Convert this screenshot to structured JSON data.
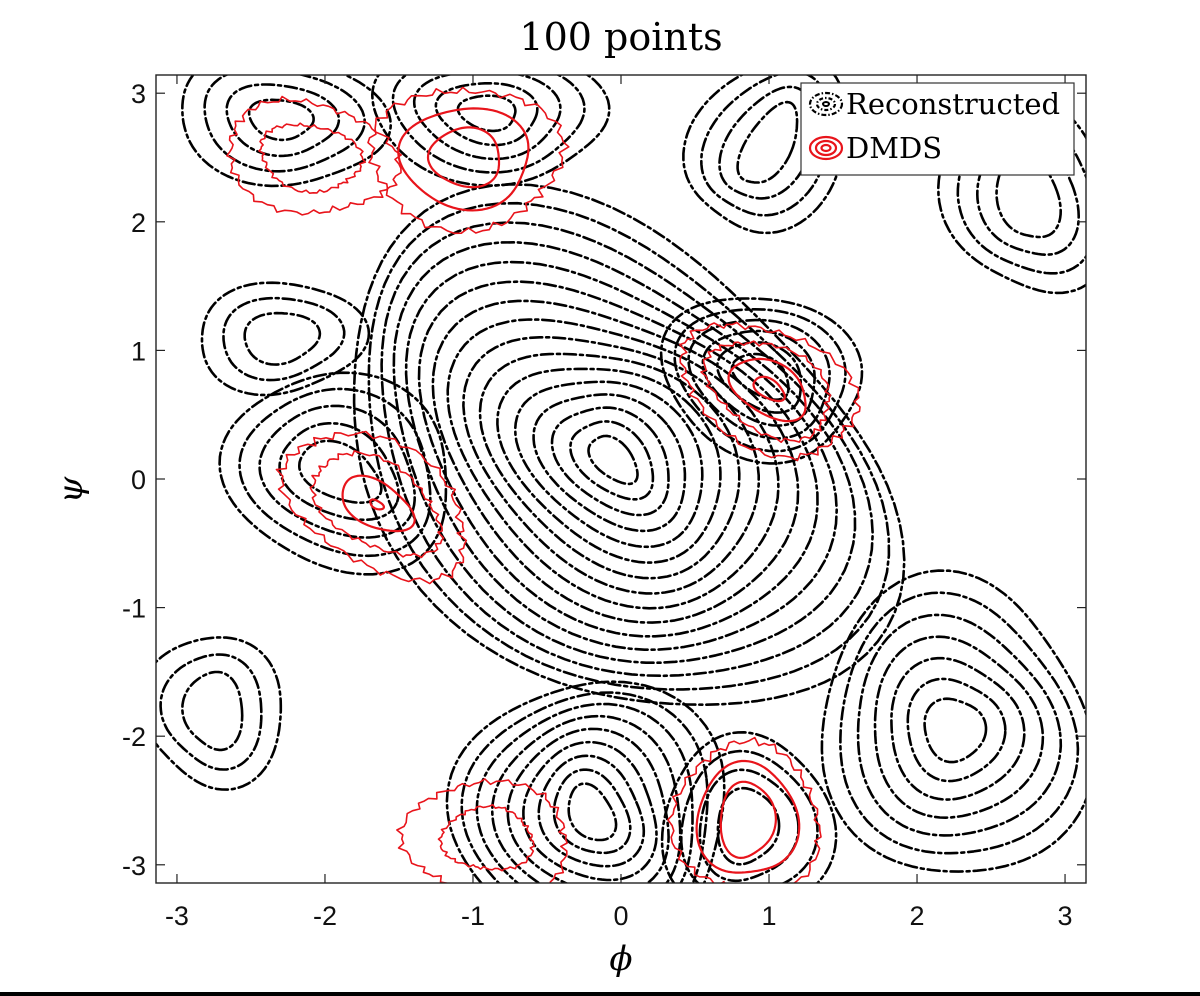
{
  "chart_data": {
    "type": "contour",
    "title": "100 points",
    "xlabel": "ϕ",
    "ylabel": "ψ",
    "xlim": [
      -3.14159,
      3.14159
    ],
    "ylim": [
      -3.14159,
      3.14159
    ],
    "xticks": [
      -3,
      -2,
      -1,
      0,
      1,
      2,
      3
    ],
    "yticks": [
      -3,
      -2,
      -1,
      0,
      1,
      2,
      3
    ],
    "xtick_labels": [
      "-3",
      "-2",
      "-1",
      "0",
      "1",
      "2",
      "3"
    ],
    "ytick_labels": [
      "-3",
      "-2",
      "-1",
      "0",
      "1",
      "2",
      "3"
    ],
    "grid": false,
    "legend_position": "top-right",
    "series": [
      {
        "name": "Reconstructed",
        "style": "dash-dot",
        "color": "#000000",
        "centers": [
          {
            "x": -0.05,
            "y": 0.15,
            "levels": 16
          },
          {
            "x": 2.25,
            "y": -1.95,
            "levels": 7
          },
          {
            "x": -1.9,
            "y": 0.05,
            "levels": 5
          },
          {
            "x": 0.95,
            "y": 0.8,
            "levels": 6
          },
          {
            "x": -0.2,
            "y": -2.6,
            "levels": 9
          },
          {
            "x": -0.9,
            "y": 2.85,
            "levels": 5
          },
          {
            "x": -2.3,
            "y": 2.8,
            "levels": 4
          },
          {
            "x": -2.3,
            "y": 1.1,
            "levels": 3
          },
          {
            "x": 0.85,
            "y": -2.7,
            "levels": 4
          },
          {
            "x": 1.0,
            "y": 2.6,
            "levels": 4
          },
          {
            "x": 2.75,
            "y": 2.2,
            "levels": 4
          },
          {
            "x": -2.75,
            "y": -1.8,
            "levels": 3
          }
        ]
      },
      {
        "name": "DMDS",
        "style": "solid",
        "color": "#e8141b",
        "centers": [
          {
            "x": -1.65,
            "y": -0.2,
            "levels": 4
          },
          {
            "x": 1.0,
            "y": 0.7,
            "levels": 4
          },
          {
            "x": -1.05,
            "y": 2.5,
            "levels": 3
          },
          {
            "x": -2.1,
            "y": 2.5,
            "levels": 2
          },
          {
            "x": 0.85,
            "y": -2.65,
            "levels": 3
          },
          {
            "x": -0.9,
            "y": -2.8,
            "levels": 2
          }
        ]
      }
    ]
  },
  "legend": {
    "items": [
      {
        "label": "Reconstructed",
        "color": "#000000"
      },
      {
        "label": "DMDS",
        "color": "#e8141b"
      }
    ]
  }
}
